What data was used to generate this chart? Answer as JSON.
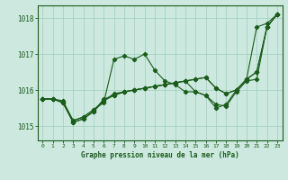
{
  "title": "Graphe pression niveau de la mer (hPa)",
  "ylim": [
    1014.6,
    1018.35
  ],
  "yticks": [
    1015,
    1016,
    1017,
    1018
  ],
  "xlim": [
    -0.5,
    23.5
  ],
  "bg_color": "#cce8df",
  "grid_color": "#9ecfbf",
  "line_color": "#1a5c1a",
  "series": [
    [
      1015.75,
      1015.75,
      1015.7,
      1015.15,
      1015.25,
      1015.45,
      1015.65,
      1016.85,
      1016.95,
      1016.85,
      1017.0,
      1016.55,
      1016.25,
      1016.15,
      1015.95,
      1015.95,
      1015.85,
      1015.5,
      1015.6,
      1016.0,
      1016.3,
      1017.75,
      1017.85,
      1018.1
    ],
    [
      1015.75,
      1015.75,
      1015.65,
      1015.1,
      1015.2,
      1015.4,
      1015.75,
      1015.85,
      1015.95,
      1016.0,
      1016.05,
      1016.1,
      1016.15,
      1016.2,
      1016.25,
      1015.95,
      1015.85,
      1015.6,
      1015.55,
      1015.95,
      1016.25,
      1016.3,
      1017.75,
      1018.1
    ],
    [
      1015.75,
      1015.75,
      1015.65,
      1015.15,
      1015.25,
      1015.45,
      1015.7,
      1015.9,
      1015.95,
      1016.0,
      1016.05,
      1016.1,
      1016.15,
      1016.2,
      1016.25,
      1016.3,
      1016.35,
      1016.05,
      1015.9,
      1016.0,
      1016.3,
      1016.5,
      1017.75,
      1018.1
    ],
    [
      1015.75,
      1015.75,
      1015.65,
      1015.1,
      1015.2,
      1015.4,
      1015.7,
      1015.85,
      1015.95,
      1016.0,
      1016.05,
      1016.1,
      1016.15,
      1016.2,
      1016.25,
      1016.3,
      1016.35,
      1016.05,
      1015.9,
      1016.0,
      1016.3,
      1016.5,
      1017.75,
      1018.1
    ]
  ],
  "xticks": [
    0,
    1,
    2,
    3,
    4,
    5,
    6,
    7,
    8,
    9,
    10,
    11,
    12,
    13,
    14,
    15,
    16,
    17,
    18,
    19,
    20,
    21,
    22,
    23
  ]
}
